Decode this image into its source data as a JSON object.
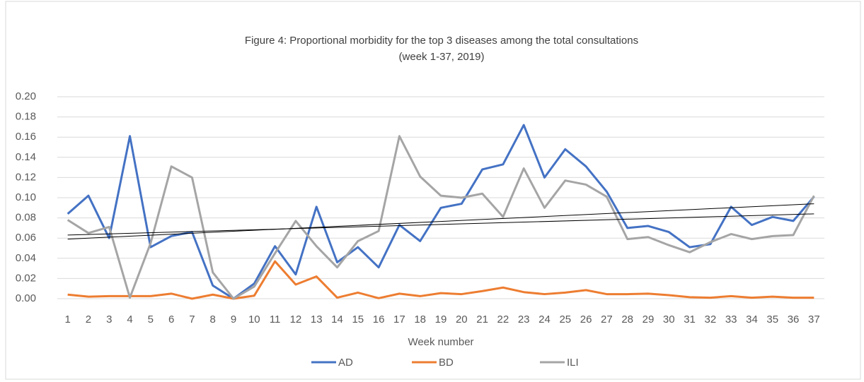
{
  "chart_data": {
    "type": "line",
    "title": "Figure 4: Proportional morbidity for the top 3 diseases among the total consultations",
    "subtitle": "(week 1-37, 2019)",
    "x_label": "Week number",
    "categories": [
      "1",
      "2",
      "3",
      "4",
      "5",
      "6",
      "7",
      "8",
      "9",
      "10",
      "11",
      "12",
      "13",
      "14",
      "15",
      "16",
      "17",
      "18",
      "19",
      "20",
      "21",
      "22",
      "23",
      "24",
      "25",
      "26",
      "27",
      "28",
      "29",
      "30",
      "31",
      "32",
      "33",
      "34",
      "35",
      "36",
      "37"
    ],
    "series": [
      {
        "name": "AD",
        "color": "#4472c4",
        "values": [
          0.084,
          0.102,
          0.06,
          0.161,
          0.051,
          0.062,
          0.066,
          0.013,
          0.0,
          0.015,
          0.052,
          0.024,
          0.091,
          0.036,
          0.051,
          0.031,
          0.073,
          0.057,
          0.09,
          0.094,
          0.128,
          0.133,
          0.172,
          0.12,
          0.148,
          0.131,
          0.106,
          0.07,
          0.072,
          0.066,
          0.051,
          0.054,
          0.091,
          0.073,
          0.081,
          0.077,
          0.101
        ]
      },
      {
        "name": "BD",
        "color": "#ed7d31",
        "values": [
          0.004,
          0.002,
          0.0025,
          0.0025,
          0.0025,
          0.005,
          0.0,
          0.004,
          0.0,
          0.003,
          0.037,
          0.014,
          0.022,
          0.001,
          0.006,
          0.0005,
          0.005,
          0.0025,
          0.0055,
          0.0045,
          0.0075,
          0.011,
          0.0065,
          0.0045,
          0.006,
          0.0085,
          0.0045,
          0.0045,
          0.005,
          0.0035,
          0.0015,
          0.001,
          0.0025,
          0.001,
          0.002,
          0.001,
          0.001
        ]
      },
      {
        "name": "ILI",
        "color": "#a5a5a5",
        "values": [
          0.078,
          0.065,
          0.071,
          0.001,
          0.055,
          0.131,
          0.12,
          0.026,
          0.0,
          0.012,
          0.045,
          0.077,
          0.052,
          0.031,
          0.057,
          0.067,
          0.161,
          0.121,
          0.102,
          0.1,
          0.104,
          0.081,
          0.129,
          0.09,
          0.117,
          0.113,
          0.101,
          0.059,
          0.061,
          0.053,
          0.046,
          0.056,
          0.064,
          0.059,
          0.062,
          0.063,
          0.102
        ]
      }
    ],
    "trendlines": [
      {
        "color": "#000000",
        "x": [
          1,
          37
        ],
        "values": [
          0.063,
          0.084
        ]
      },
      {
        "color": "#000000",
        "x": [
          1,
          37
        ],
        "values": [
          0.059,
          0.094
        ]
      }
    ],
    "ylim": [
      0,
      0.2
    ],
    "yticks": [
      {
        "value": 0,
        "label": "0.00"
      },
      {
        "value": 0.02,
        "label": "0.02"
      },
      {
        "value": 0.04,
        "label": "0.04"
      },
      {
        "value": 0.06,
        "label": "0.06"
      },
      {
        "value": 0.08,
        "label": "0.08"
      },
      {
        "value": 0.1,
        "label": "0.10"
      },
      {
        "value": 0.12,
        "label": "0.12"
      },
      {
        "value": 0.14,
        "label": "0.14"
      },
      {
        "value": 0.16,
        "label": "0.16"
      },
      {
        "value": 0.18,
        "label": "0.18"
      },
      {
        "value": 0.2,
        "label": "0.20"
      }
    ],
    "grid": true,
    "legend": "bottom"
  }
}
